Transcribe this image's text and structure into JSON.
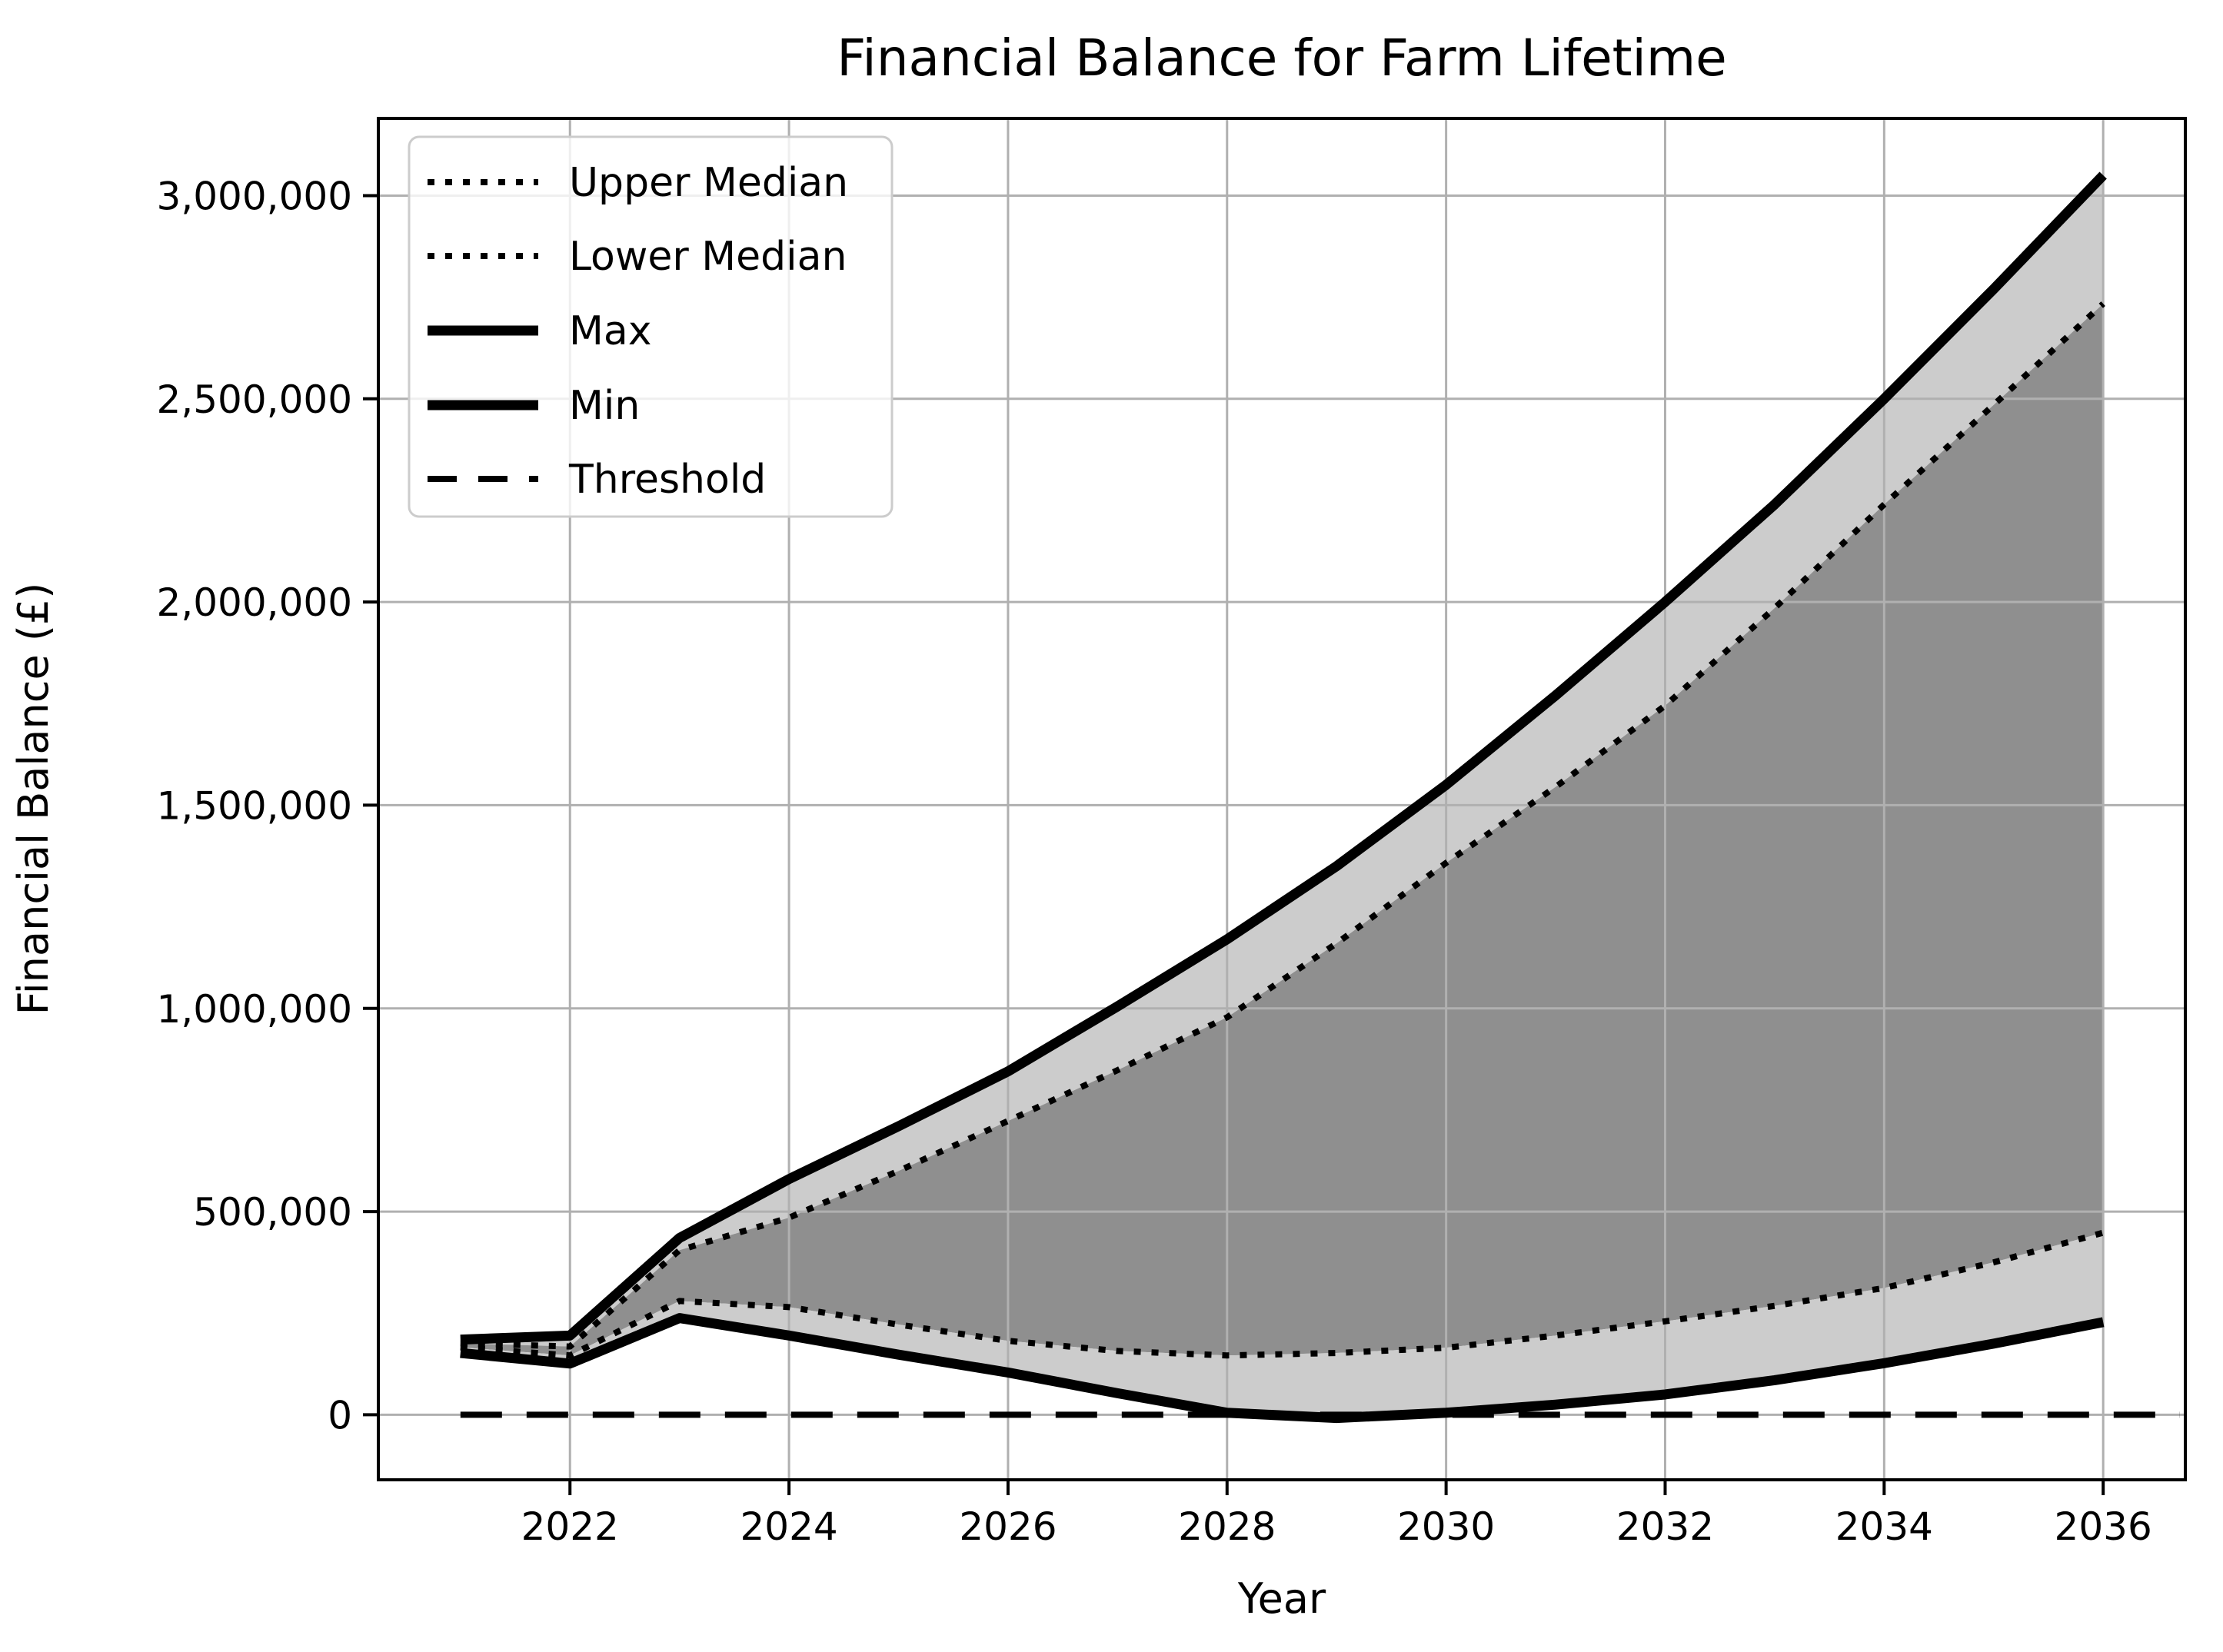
{
  "chart_data": {
    "type": "line",
    "title": "Financial Balance for Farm Lifetime",
    "xlabel": "Year",
    "ylabel": "Financial Balance (£)",
    "x": [
      2021,
      2022,
      2023,
      2024,
      2025,
      2026,
      2027,
      2028,
      2029,
      2030,
      2031,
      2032,
      2033,
      2034,
      2035,
      2036
    ],
    "series": [
      {
        "name": "Upper Median",
        "style": "dotted",
        "values": [
          176000,
          168000,
          405000,
          485000,
          600000,
          723000,
          848000,
          978000,
          1160000,
          1358000,
          1545000,
          1745000,
          1985000,
          2240000,
          2485000,
          2734000
        ]
      },
      {
        "name": "Lower Median",
        "style": "dotted",
        "values": [
          166000,
          146000,
          280000,
          265000,
          222000,
          182000,
          157000,
          146000,
          152000,
          165000,
          195000,
          230000,
          268000,
          312000,
          375000,
          448000
        ]
      },
      {
        "name": "Max",
        "style": "solid-thick",
        "values": [
          185000,
          195000,
          435000,
          580000,
          710000,
          845000,
          1005000,
          1170000,
          1350000,
          1550000,
          1770000,
          2000000,
          2240000,
          2500000,
          2770000,
          3050000
        ]
      },
      {
        "name": "Min",
        "style": "solid-thick",
        "values": [
          152000,
          126000,
          238000,
          195000,
          148000,
          104000,
          53000,
          5000,
          -8000,
          5000,
          25000,
          50000,
          85000,
          127000,
          175000,
          228000
        ]
      }
    ],
    "threshold": {
      "name": "Threshold",
      "style": "dashed",
      "value": 0
    },
    "bands": [
      {
        "between": [
          "Max",
          "Upper Median"
        ],
        "color": "#cccccc"
      },
      {
        "between": [
          "Upper Median",
          "Lower Median"
        ],
        "color": "#8f8f8f"
      },
      {
        "between": [
          "Lower Median",
          "Min"
        ],
        "color": "#cccccc"
      }
    ],
    "xlim": [
      2020.25,
      2036.75
    ],
    "ylim": [
      -160000,
      3190000
    ],
    "xticks": [
      2022,
      2024,
      2026,
      2028,
      2030,
      2032,
      2034,
      2036
    ],
    "xtick_labels": [
      "2022",
      "2024",
      "2026",
      "2028",
      "2030",
      "2032",
      "2034",
      "2036"
    ],
    "yticks": [
      0,
      500000,
      1000000,
      1500000,
      2000000,
      2500000,
      3000000
    ],
    "ytick_labels": [
      "0",
      "500,000",
      "1,000,000",
      "1,500,000",
      "2,000,000",
      "2,500,000",
      "3,000,000"
    ],
    "grid": true,
    "legend_position": "upper left",
    "colors": {
      "line": "#000000",
      "band_light": "#cccccc",
      "band_dark": "#8f8f8f",
      "grid": "#b0b0b0",
      "spine": "#000000",
      "legend_border": "#cccccc",
      "legend_fill": "#ffffff",
      "background": "#ffffff"
    }
  }
}
